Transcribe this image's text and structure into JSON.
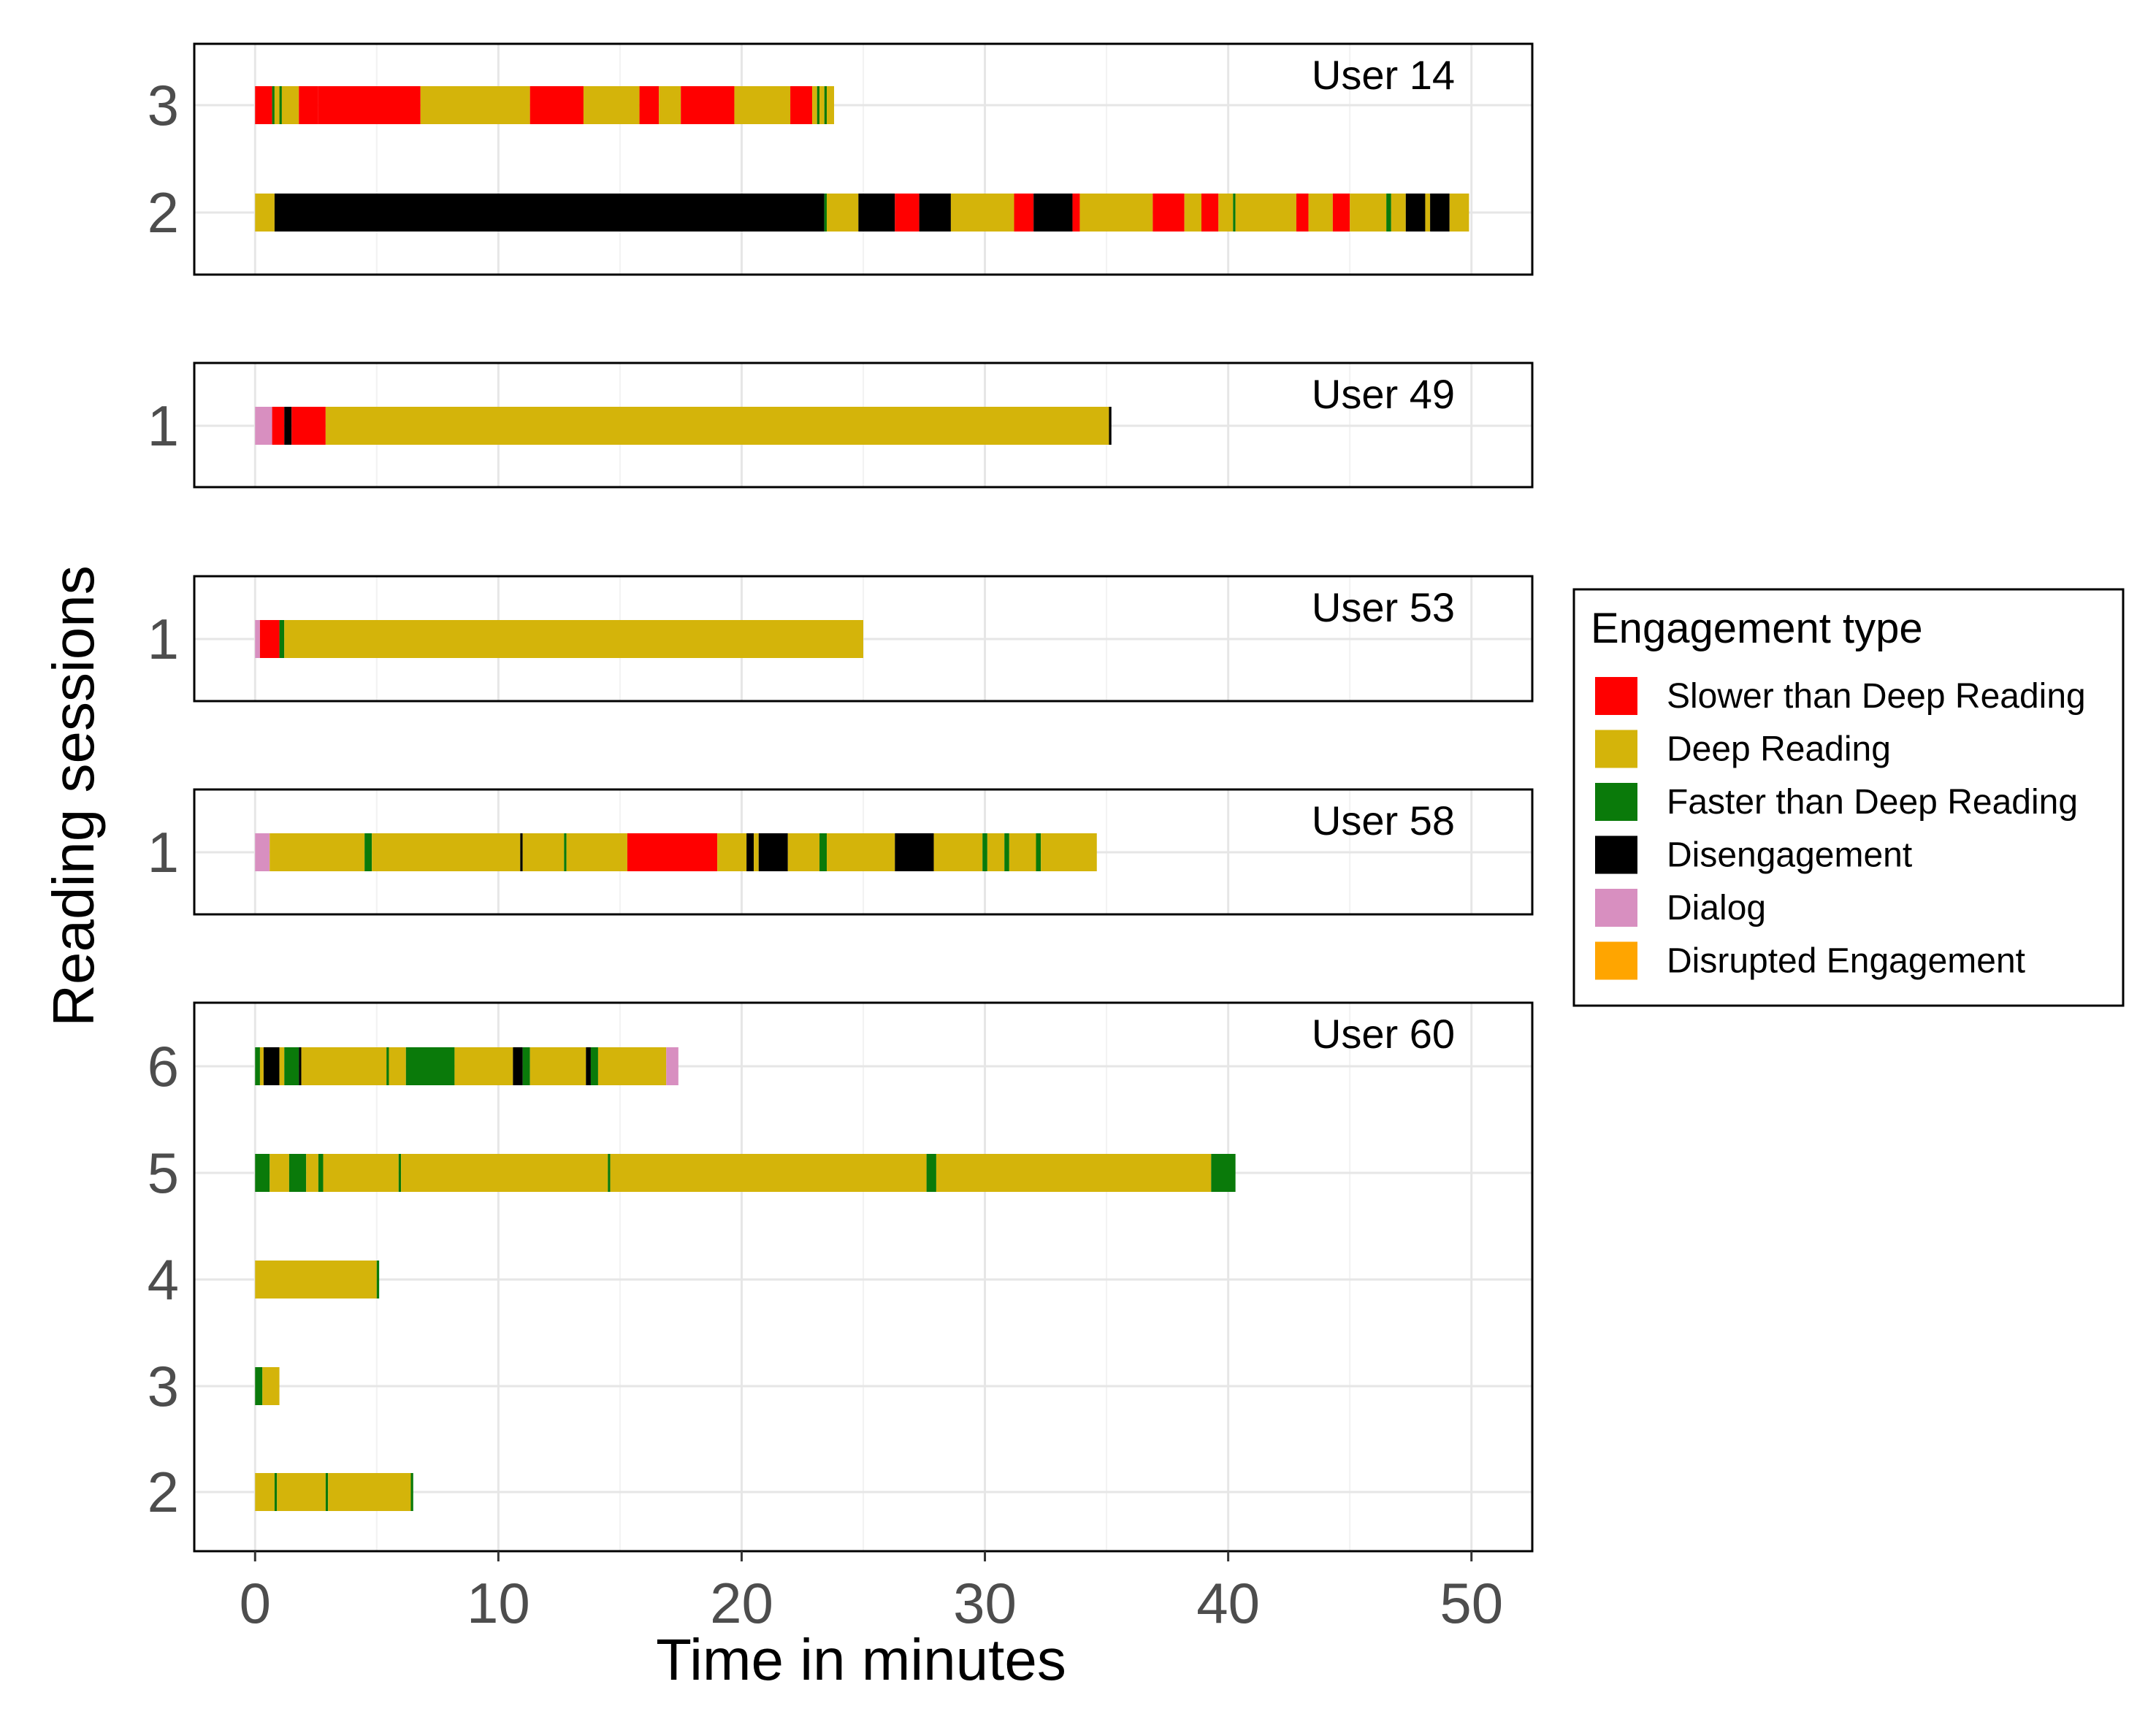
{
  "chart_data": {
    "type": "timeline",
    "ylabel": "Reading sessions",
    "xlabel": "Time in minutes",
    "x_ticks": [
      "0",
      "10",
      "20",
      "30",
      "40",
      "50"
    ],
    "x_range": [
      -2.5,
      52.5
    ],
    "grid": true,
    "legend": {
      "title": "Engagement type",
      "placement": "right",
      "items": [
        {
          "label": "Slower than Deep Reading",
          "color": "#ff0000"
        },
        {
          "label": "Deep Reading",
          "color": "#d4b40a"
        },
        {
          "label": "Faster than Deep Reading",
          "color": "#0a7a0a"
        },
        {
          "label": "Disengagement",
          "color": "#000000"
        },
        {
          "label": "Dialog",
          "color": "#d88fc0"
        },
        {
          "label": "Disrupted Engagement",
          "color": "#ffa500"
        }
      ]
    },
    "colors": {
      "slower": "#ff0000",
      "deep": "#d4b40a",
      "faster": "#0a7a0a",
      "diseng": "#000000",
      "dialog": "#d88fc0",
      "disrupted": "#ffa500"
    },
    "panels": [
      {
        "title": "User 14",
        "sessions": [
          {
            "label": "3",
            "segments": [
              [
                0,
                0.7,
                "slower"
              ],
              [
                0.7,
                0.8,
                "faster"
              ],
              [
                0.8,
                1.0,
                "deep"
              ],
              [
                1.0,
                1.1,
                "faster"
              ],
              [
                1.1,
                1.8,
                "deep"
              ],
              [
                1.8,
                2.6,
                "slower"
              ],
              [
                2.6,
                6.8,
                "slower"
              ],
              [
                6.8,
                11.3,
                "deep"
              ],
              [
                11.3,
                13.5,
                "slower"
              ],
              [
                13.5,
                15.8,
                "deep"
              ],
              [
                15.8,
                16.6,
                "slower"
              ],
              [
                16.6,
                17.5,
                "deep"
              ],
              [
                17.5,
                19.7,
                "slower"
              ],
              [
                19.7,
                22.0,
                "deep"
              ],
              [
                22.0,
                22.9,
                "slower"
              ],
              [
                22.9,
                23.1,
                "deep"
              ],
              [
                23.1,
                23.2,
                "faster"
              ],
              [
                23.2,
                23.4,
                "deep"
              ],
              [
                23.4,
                23.5,
                "faster"
              ],
              [
                23.5,
                23.8,
                "deep"
              ]
            ]
          },
          {
            "label": "2",
            "segments": [
              [
                0,
                0.8,
                "deep"
              ],
              [
                0.8,
                23.4,
                "diseng"
              ],
              [
                23.4,
                23.5,
                "faster"
              ],
              [
                23.5,
                24.8,
                "deep"
              ],
              [
                24.8,
                26.3,
                "diseng"
              ],
              [
                26.3,
                27.3,
                "slower"
              ],
              [
                27.3,
                28.6,
                "diseng"
              ],
              [
                28.6,
                31.2,
                "deep"
              ],
              [
                31.2,
                32.0,
                "slower"
              ],
              [
                32.0,
                33.6,
                "diseng"
              ],
              [
                33.6,
                33.9,
                "slower"
              ],
              [
                33.9,
                36.9,
                "deep"
              ],
              [
                36.9,
                38.2,
                "slower"
              ],
              [
                38.2,
                38.9,
                "deep"
              ],
              [
                38.9,
                39.6,
                "slower"
              ],
              [
                39.6,
                40.2,
                "deep"
              ],
              [
                40.2,
                40.3,
                "faster"
              ],
              [
                40.3,
                42.8,
                "deep"
              ],
              [
                42.8,
                43.3,
                "slower"
              ],
              [
                43.3,
                44.3,
                "deep"
              ],
              [
                44.3,
                45.0,
                "slower"
              ],
              [
                45.0,
                46.5,
                "deep"
              ],
              [
                46.5,
                46.7,
                "faster"
              ],
              [
                46.7,
                47.3,
                "deep"
              ],
              [
                47.3,
                48.1,
                "diseng"
              ],
              [
                48.1,
                48.3,
                "deep"
              ],
              [
                48.3,
                49.1,
                "diseng"
              ],
              [
                49.1,
                49.9,
                "deep"
              ]
            ]
          }
        ]
      },
      {
        "title": "User 49",
        "sessions": [
          {
            "label": "1",
            "segments": [
              [
                0,
                0.7,
                "dialog"
              ],
              [
                0.7,
                1.2,
                "slower"
              ],
              [
                1.2,
                1.5,
                "diseng"
              ],
              [
                1.5,
                2.9,
                "slower"
              ],
              [
                2.9,
                35.1,
                "deep"
              ],
              [
                35.1,
                35.2,
                "diseng"
              ]
            ]
          }
        ]
      },
      {
        "title": "User 53",
        "sessions": [
          {
            "label": "1",
            "segments": [
              [
                0,
                0.2,
                "dialog"
              ],
              [
                0.2,
                1.0,
                "slower"
              ],
              [
                1.0,
                1.2,
                "faster"
              ],
              [
                1.2,
                25.0,
                "deep"
              ]
            ]
          }
        ]
      },
      {
        "title": "User 58",
        "sessions": [
          {
            "label": "1",
            "segments": [
              [
                0,
                0.6,
                "dialog"
              ],
              [
                0.6,
                4.5,
                "deep"
              ],
              [
                4.5,
                4.8,
                "faster"
              ],
              [
                4.8,
                10.9,
                "deep"
              ],
              [
                10.9,
                11.0,
                "diseng"
              ],
              [
                11.0,
                12.7,
                "deep"
              ],
              [
                12.7,
                12.8,
                "faster"
              ],
              [
                12.8,
                15.3,
                "deep"
              ],
              [
                15.3,
                19.0,
                "slower"
              ],
              [
                19.0,
                20.2,
                "deep"
              ],
              [
                20.2,
                20.5,
                "diseng"
              ],
              [
                20.5,
                20.7,
                "deep"
              ],
              [
                20.7,
                21.9,
                "diseng"
              ],
              [
                21.9,
                23.2,
                "deep"
              ],
              [
                23.2,
                23.5,
                "faster"
              ],
              [
                23.5,
                26.3,
                "deep"
              ],
              [
                26.3,
                27.9,
                "diseng"
              ],
              [
                27.9,
                29.9,
                "deep"
              ],
              [
                29.9,
                30.1,
                "faster"
              ],
              [
                30.1,
                30.8,
                "deep"
              ],
              [
                30.8,
                31.0,
                "faster"
              ],
              [
                31.0,
                32.1,
                "deep"
              ],
              [
                32.1,
                32.3,
                "faster"
              ],
              [
                32.3,
                34.6,
                "deep"
              ]
            ]
          }
        ]
      },
      {
        "title": "User 60",
        "sessions": [
          {
            "label": "6",
            "segments": [
              [
                0,
                0.2,
                "faster"
              ],
              [
                0.2,
                0.35,
                "deep"
              ],
              [
                0.35,
                1.0,
                "diseng"
              ],
              [
                1.0,
                1.2,
                "deep"
              ],
              [
                1.2,
                1.8,
                "faster"
              ],
              [
                1.8,
                1.9,
                "diseng"
              ],
              [
                1.9,
                5.4,
                "deep"
              ],
              [
                5.4,
                5.5,
                "faster"
              ],
              [
                5.5,
                6.2,
                "deep"
              ],
              [
                6.2,
                8.2,
                "faster"
              ],
              [
                8.2,
                10.6,
                "deep"
              ],
              [
                10.6,
                11.0,
                "diseng"
              ],
              [
                11.0,
                11.3,
                "faster"
              ],
              [
                11.3,
                13.6,
                "deep"
              ],
              [
                13.6,
                13.8,
                "diseng"
              ],
              [
                13.8,
                14.1,
                "faster"
              ],
              [
                14.1,
                16.9,
                "deep"
              ],
              [
                16.9,
                17.4,
                "dialog"
              ]
            ]
          },
          {
            "label": "5",
            "segments": [
              [
                0,
                0.6,
                "faster"
              ],
              [
                0.6,
                1.4,
                "deep"
              ],
              [
                1.4,
                2.1,
                "faster"
              ],
              [
                2.1,
                2.6,
                "deep"
              ],
              [
                2.6,
                2.8,
                "faster"
              ],
              [
                2.8,
                5.9,
                "deep"
              ],
              [
                5.9,
                6.0,
                "faster"
              ],
              [
                6.0,
                14.5,
                "deep"
              ],
              [
                14.5,
                14.6,
                "faster"
              ],
              [
                14.6,
                27.6,
                "deep"
              ],
              [
                27.6,
                28.0,
                "faster"
              ],
              [
                28.0,
                39.3,
                "deep"
              ],
              [
                39.3,
                40.3,
                "faster"
              ]
            ]
          },
          {
            "label": "4",
            "segments": [
              [
                0,
                5.0,
                "deep"
              ],
              [
                5.0,
                5.1,
                "faster"
              ]
            ]
          },
          {
            "label": "3",
            "segments": [
              [
                0,
                0.3,
                "faster"
              ],
              [
                0.3,
                1.0,
                "deep"
              ]
            ]
          },
          {
            "label": "2",
            "segments": [
              [
                0,
                0.8,
                "deep"
              ],
              [
                0.8,
                0.9,
                "faster"
              ],
              [
                0.9,
                2.9,
                "deep"
              ],
              [
                2.9,
                3.0,
                "faster"
              ],
              [
                3.0,
                6.4,
                "deep"
              ],
              [
                6.4,
                6.5,
                "faster"
              ]
            ]
          }
        ]
      }
    ]
  }
}
